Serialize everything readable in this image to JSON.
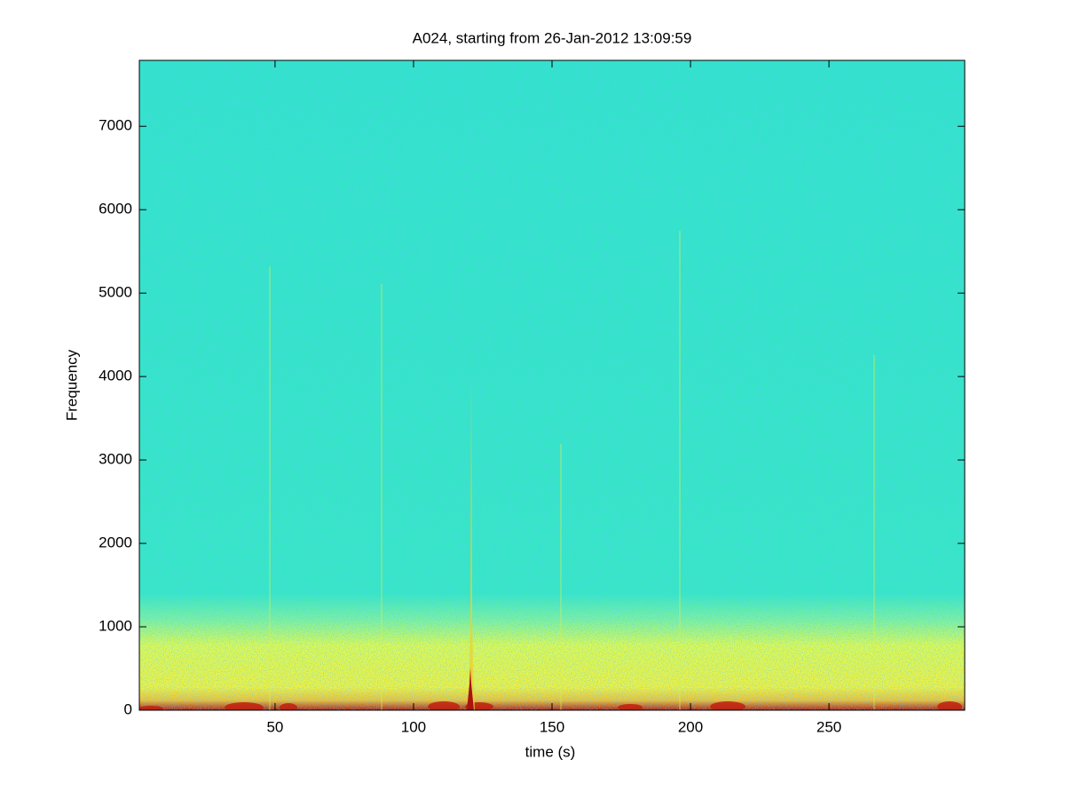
{
  "chart_data": {
    "type": "spectrogram",
    "title": "A024, starting from 26-Jan-2012 13:09:59",
    "x_label": "time (s)",
    "y_label": "Frequency",
    "xlim": [
      1,
      299
    ],
    "xticks": [
      50,
      100,
      150,
      200,
      250
    ],
    "ylim": [
      0,
      7790
    ],
    "yticks": [
      0,
      1000,
      2000,
      3000,
      4000,
      5000,
      6000,
      7000
    ]
  }
}
